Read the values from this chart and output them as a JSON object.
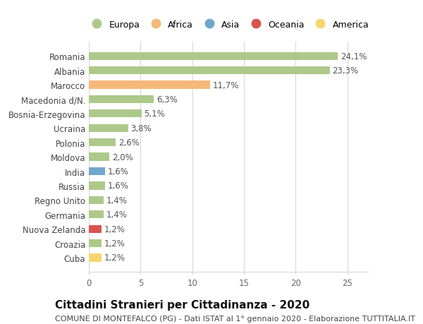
{
  "categories": [
    "Romania",
    "Albania",
    "Marocco",
    "Macedonia d/N.",
    "Bosnia-Erzegovina",
    "Ucraina",
    "Polonia",
    "Moldova",
    "India",
    "Russia",
    "Regno Unito",
    "Germania",
    "Nuova Zelanda",
    "Croazia",
    "Cuba"
  ],
  "values": [
    24.1,
    23.3,
    11.7,
    6.3,
    5.1,
    3.8,
    2.6,
    2.0,
    1.6,
    1.6,
    1.4,
    1.4,
    1.2,
    1.2,
    1.2
  ],
  "labels": [
    "24,1%",
    "23,3%",
    "11,7%",
    "6,3%",
    "5,1%",
    "3,8%",
    "2,6%",
    "2,0%",
    "1,6%",
    "1,6%",
    "1,4%",
    "1,4%",
    "1,2%",
    "1,2%",
    "1,2%"
  ],
  "bar_colors": [
    "#adc98a",
    "#adc98a",
    "#f4b97a",
    "#adc98a",
    "#adc98a",
    "#adc98a",
    "#adc98a",
    "#adc98a",
    "#6fa8cc",
    "#adc98a",
    "#adc98a",
    "#adc98a",
    "#d9534f",
    "#adc98a",
    "#f5d76e"
  ],
  "legend_labels": [
    "Europa",
    "Africa",
    "Asia",
    "Oceania",
    "America"
  ],
  "legend_colors": [
    "#adc98a",
    "#f4b97a",
    "#6fa8cc",
    "#d9534f",
    "#f5d76e"
  ],
  "title": "Cittadini Stranieri per Cittadinanza - 2020",
  "subtitle": "COMUNE DI MONTEFALCO (PG) - Dati ISTAT al 1° gennaio 2020 - Elaborazione TUTTITALIA.IT",
  "xlim": [
    0,
    27
  ],
  "xticks": [
    0,
    5,
    10,
    15,
    20,
    25
  ],
  "background_color": "#ffffff",
  "grid_color": "#d8d8d8",
  "bar_height": 0.55,
  "label_fontsize": 8.5,
  "ytick_fontsize": 8.5,
  "xtick_fontsize": 8.5,
  "title_fontsize": 11,
  "subtitle_fontsize": 8,
  "legend_fontsize": 9
}
